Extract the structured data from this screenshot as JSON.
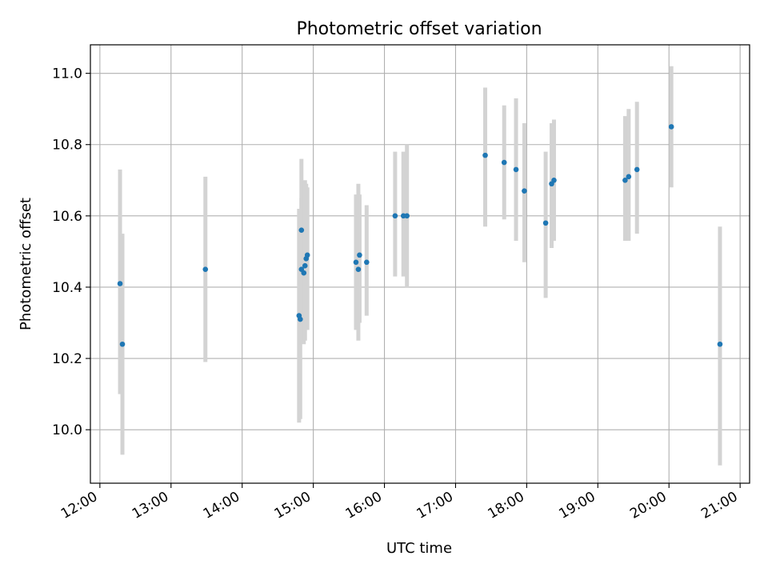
{
  "chart_data": {
    "type": "scatter",
    "title": "Photometric offset variation",
    "xlabel": "UTC time",
    "ylabel": "Photometric offset",
    "x_ticks": [
      "12:00",
      "13:00",
      "14:00",
      "15:00",
      "16:00",
      "17:00",
      "18:00",
      "19:00",
      "20:00",
      "21:00"
    ],
    "y_ticks": [
      "10.0",
      "10.2",
      "10.4",
      "10.6",
      "10.8",
      "11.0"
    ],
    "xlim": [
      "11:52",
      "21:08"
    ],
    "ylim": [
      9.85,
      11.08
    ],
    "grid": true,
    "colors": {
      "points": "#1f77b4",
      "error_bars": "#d3d3d3",
      "grid": "#b0b0b0"
    },
    "points": [
      {
        "x": "12:17",
        "y": 10.41,
        "y_low": 10.1,
        "y_high": 10.73
      },
      {
        "x": "12:19",
        "y": 10.24,
        "y_low": 9.93,
        "y_high": 10.55
      },
      {
        "x": "13:29",
        "y": 10.45,
        "y_low": 10.19,
        "y_high": 10.71
      },
      {
        "x": "14:48",
        "y": 10.32,
        "y_low": 10.02,
        "y_high": 10.62
      },
      {
        "x": "14:49",
        "y": 10.31,
        "y_low": 10.03,
        "y_high": 10.6
      },
      {
        "x": "14:50",
        "y": 10.56,
        "y_low": 10.36,
        "y_high": 10.76
      },
      {
        "x": "14:50",
        "y": 10.45,
        "y_low": 10.25,
        "y_high": 10.65
      },
      {
        "x": "14:52",
        "y": 10.44,
        "y_low": 10.24,
        "y_high": 10.64
      },
      {
        "x": "14:53",
        "y": 10.46,
        "y_low": 10.25,
        "y_high": 10.7
      },
      {
        "x": "14:54",
        "y": 10.48,
        "y_low": 10.28,
        "y_high": 10.69
      },
      {
        "x": "14:55",
        "y": 10.49,
        "y_low": 10.28,
        "y_high": 10.68
      },
      {
        "x": "15:36",
        "y": 10.47,
        "y_low": 10.28,
        "y_high": 10.66
      },
      {
        "x": "15:38",
        "y": 10.45,
        "y_low": 10.25,
        "y_high": 10.69
      },
      {
        "x": "15:39",
        "y": 10.49,
        "y_low": 10.3,
        "y_high": 10.66
      },
      {
        "x": "15:45",
        "y": 10.47,
        "y_low": 10.32,
        "y_high": 10.63
      },
      {
        "x": "16:09",
        "y": 10.6,
        "y_low": 10.43,
        "y_high": 10.78
      },
      {
        "x": "16:16",
        "y": 10.6,
        "y_low": 10.43,
        "y_high": 10.78
      },
      {
        "x": "16:19",
        "y": 10.6,
        "y_low": 10.4,
        "y_high": 10.8
      },
      {
        "x": "17:25",
        "y": 10.77,
        "y_low": 10.57,
        "y_high": 10.96
      },
      {
        "x": "17:41",
        "y": 10.75,
        "y_low": 10.59,
        "y_high": 10.91
      },
      {
        "x": "17:51",
        "y": 10.73,
        "y_low": 10.53,
        "y_high": 10.93
      },
      {
        "x": "17:58",
        "y": 10.67,
        "y_low": 10.47,
        "y_high": 10.86
      },
      {
        "x": "18:16",
        "y": 10.58,
        "y_low": 10.37,
        "y_high": 10.78
      },
      {
        "x": "18:21",
        "y": 10.69,
        "y_low": 10.51,
        "y_high": 10.86
      },
      {
        "x": "18:23",
        "y": 10.7,
        "y_low": 10.53,
        "y_high": 10.87
      },
      {
        "x": "19:23",
        "y": 10.7,
        "y_low": 10.53,
        "y_high": 10.88
      },
      {
        "x": "19:26",
        "y": 10.71,
        "y_low": 10.53,
        "y_high": 10.9
      },
      {
        "x": "19:33",
        "y": 10.73,
        "y_low": 10.55,
        "y_high": 10.92
      },
      {
        "x": "20:02",
        "y": 10.85,
        "y_low": 10.68,
        "y_high": 11.02
      },
      {
        "x": "20:43",
        "y": 10.24,
        "y_low": 9.9,
        "y_high": 10.57
      }
    ]
  }
}
